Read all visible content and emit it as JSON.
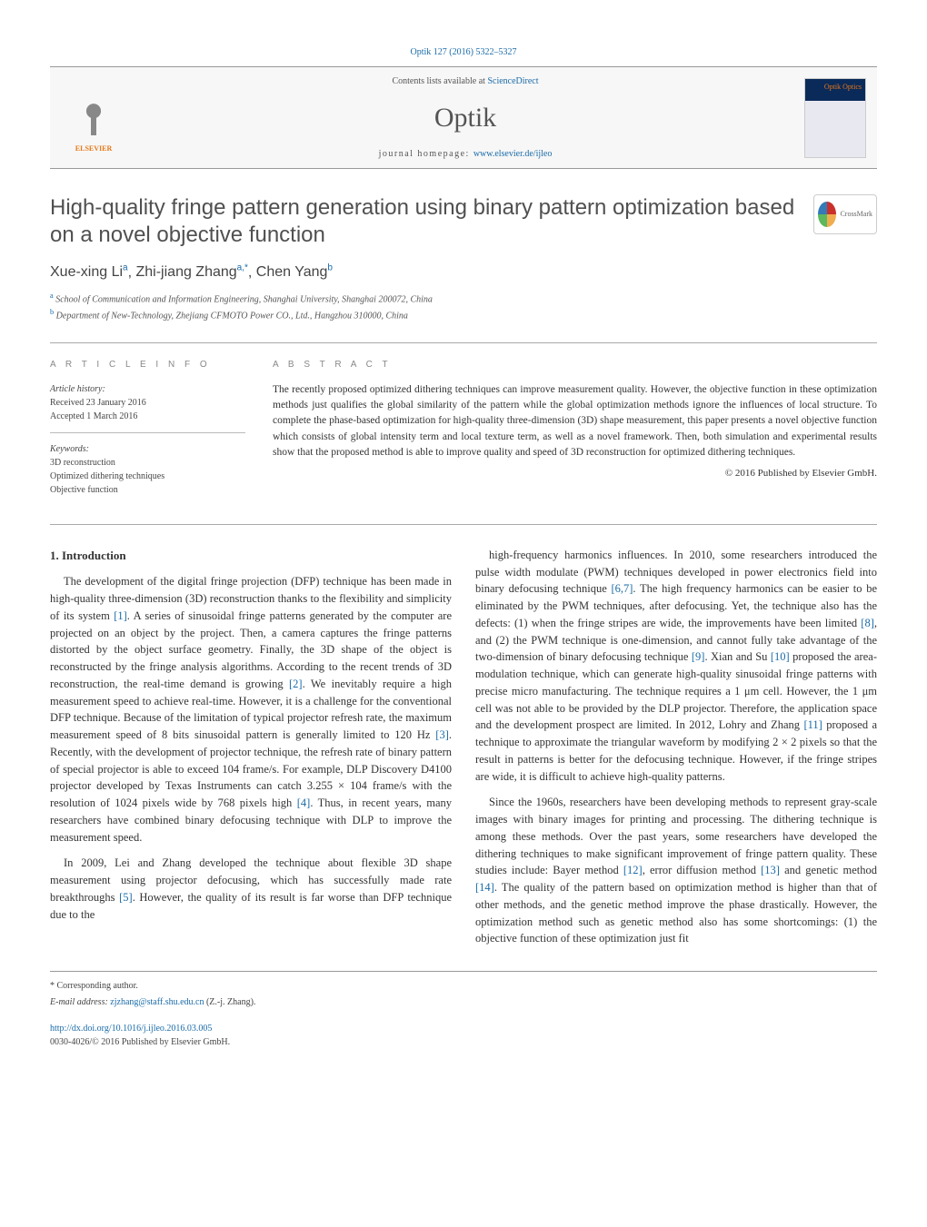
{
  "top_link": "Optik 127 (2016) 5322–5327",
  "header": {
    "elsevier_label": "ELSEVIER",
    "contents_prefix": "Contents lists available at ",
    "contents_link": "ScienceDirect",
    "journal_name": "Optik",
    "homepage_prefix": "journal homepage: ",
    "homepage_link": "www.elsevier.de/ijleo",
    "cover_label": "Optik\nOptics"
  },
  "crossmark_label": "CrossMark",
  "article": {
    "title": "High-quality fringe pattern generation using binary pattern optimization based on a novel objective function",
    "authors_html": "Xue-xing Li",
    "authors": [
      {
        "name": "Xue-xing Li",
        "sup": "a"
      },
      {
        "name": "Zhi-jiang Zhang",
        "sup": "a,*"
      },
      {
        "name": "Chen Yang",
        "sup": "b"
      }
    ],
    "affiliations": [
      {
        "sup": "a",
        "text": "School of Communication and Information Engineering, Shanghai University, Shanghai 200072, China"
      },
      {
        "sup": "b",
        "text": "Department of New-Technology, Zhejiang CFMOTO Power CO., Ltd., Hangzhou 310000, China"
      }
    ]
  },
  "info": {
    "section_label": "a r t i c l e   i n f o",
    "history_label": "Article history:",
    "received": "Received 23 January 2016",
    "accepted": "Accepted 1 March 2016",
    "keywords_label": "Keywords:",
    "keywords": [
      "3D reconstruction",
      "Optimized dithering techniques",
      "Objective function"
    ]
  },
  "abstract": {
    "section_label": "a b s t r a c t",
    "text": "The recently proposed optimized dithering techniques can improve measurement quality. However, the objective function in these optimization methods just qualifies the global similarity of the pattern while the global optimization methods ignore the influences of local structure. To complete the phase-based optimization for high-quality three-dimension (3D) shape measurement, this paper presents a novel objective function which consists of global intensity term and local texture term, as well as a novel framework. Then, both simulation and experimental results show that the proposed method is able to improve quality and speed of 3D reconstruction for optimized dithering techniques.",
    "copyright": "© 2016 Published by Elsevier GmbH."
  },
  "body": {
    "heading": "1.  Introduction",
    "p1": "The development of the digital fringe projection (DFP) technique has been made in high-quality three-dimension (3D) reconstruction thanks to the flexibility and simplicity of its system [1]. A series of sinusoidal fringe patterns generated by the computer are projected on an object by the project. Then, a camera captures the fringe patterns distorted by the object surface geometry. Finally, the 3D shape of the object is reconstructed by the fringe analysis algorithms. According to the recent trends of 3D reconstruction, the real-time demand is growing [2]. We inevitably require a high measurement speed to achieve real-time. However, it is a challenge for the conventional DFP technique. Because of the limitation of typical projector refresh rate, the maximum measurement speed of 8 bits sinusoidal pattern is generally limited to 120 Hz [3]. Recently, with the development of projector technique, the refresh rate of binary pattern of special projector is able to exceed 104 frame/s. For example, DLP Discovery D4100 projector developed by Texas Instruments can catch 3.255 × 104 frame/s with the resolution of 1024 pixels wide by 768 pixels high [4]. Thus, in recent years, many researchers have combined binary defocusing technique with DLP to improve the measurement speed.",
    "p2": "In 2009, Lei and Zhang developed the technique about flexible 3D shape measurement using projector defocusing, which has successfully made rate breakthroughs [5]. However, the quality of its result is far worse than DFP technique due to the",
    "p3": "high-frequency harmonics influences. In 2010, some researchers introduced the pulse width modulate (PWM) techniques developed in power electronics field into binary defocusing technique [6,7]. The high frequency harmonics can be easier to be eliminated by the PWM techniques, after defocusing. Yet, the technique also has the defects: (1) when the fringe stripes are wide, the improvements have been limited [8], and (2) the PWM technique is one-dimension, and cannot fully take advantage of the two-dimension of binary defocusing technique [9]. Xian and Su [10] proposed the area-modulation technique, which can generate high-quality sinusoidal fringe patterns with precise micro manufacturing. The technique requires a 1 μm cell. However, the 1 μm cell was not able to be provided by the DLP projector. Therefore, the application space and the development prospect are limited. In 2012, Lohry and Zhang [11] proposed a technique to approximate the triangular waveform by modifying 2 × 2 pixels so that the result in patterns is better for the defocusing technique. However, if the fringe stripes are wide, it is difficult to achieve high-quality patterns.",
    "p4": "Since the 1960s, researchers have been developing methods to represent gray-scale images with binary images for printing and processing. The dithering technique is among these methods. Over the past years, some researchers have developed the dithering techniques to make significant improvement of fringe pattern quality. These studies include: Bayer method [12], error diffusion method [13] and genetic method [14]. The quality of the pattern based on optimization method is higher than that of other methods, and the genetic method improve the phase drastically. However, the optimization method such as genetic method also has some shortcomings: (1) the objective function of these optimization just fit"
  },
  "footer": {
    "corr_label": "* Corresponding author.",
    "email_label": "E-mail address: ",
    "email": "zjzhang@staff.shu.edu.cn",
    "email_suffix": " (Z.-j. Zhang).",
    "doi": "http://dx.doi.org/10.1016/j.ijleo.2016.03.005",
    "issn_line": "0030-4026/© 2016 Published by Elsevier GmbH."
  },
  "colors": {
    "link": "#1a6ba8",
    "text": "#333333",
    "rule": "#999999",
    "orange": "#e67817"
  }
}
